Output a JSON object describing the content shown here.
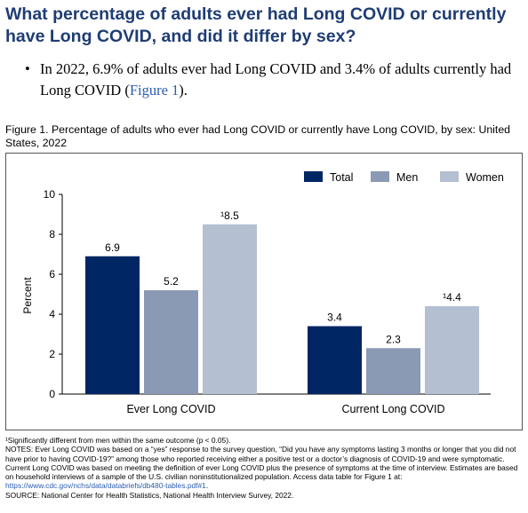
{
  "heading": "What percentage of adults ever had Long COVID or currently have Long COVID, and did it differ by sex?",
  "bullet": {
    "text": "In 2022, 6.9% of adults ever had Long COVID and 3.4% of adults currently had Long COVID (",
    "link": "Figure 1",
    "after": ")."
  },
  "caption": "Figure 1. Percentage of adults who ever had Long COVID or currently have Long COVID, by sex: United States, 2022",
  "chart_data": {
    "type": "bar",
    "categories": [
      "Ever Long COVID",
      "Current Long COVID"
    ],
    "series": [
      {
        "name": "Total",
        "color": "#002664",
        "values": [
          6.9,
          3.4
        ],
        "labels": [
          "6.9",
          "3.4"
        ]
      },
      {
        "name": "Men",
        "color": "#8a9ab4",
        "values": [
          5.2,
          2.3
        ],
        "labels": [
          "5.2",
          "2.3"
        ]
      },
      {
        "name": "Women",
        "color": "#b4bfd1",
        "values": [
          8.5,
          4.4
        ],
        "labels": [
          "¹8.5",
          "¹4.4"
        ]
      }
    ],
    "ylabel": "Percent",
    "ylim": [
      0,
      10
    ],
    "yticks": [
      0,
      2,
      4,
      6,
      8,
      10
    ],
    "grid": false,
    "legend": "top-right"
  },
  "notes": {
    "footnote": "¹Significantly different from men within the same outcome (p < 0.05).",
    "notes_text": "NOTES: Ever Long COVID was based on a “yes” response to the survey question, “Did you have any symptoms lasting 3 months or longer that you did not have prior to having COVID-19?” among those who reported receiving either a positive test or a doctor’s diagnosis of COVID-19 and were symptomatic. Current Long COVID was based on meeting the definition of ever Long COVID plus the presence of symptoms at the time of interview. Estimates are based on household interviews of a sample of the U.S. civilian noninstitutionalized population. Access data table for Figure 1 at: ",
    "link": "https://www.cdc.gov/nchs/data/databriefs/db480-tables.pdf#1",
    "link_after": ".",
    "source": "SOURCE: National Center for Health Statistics, National Health Interview Survey, 2022."
  }
}
